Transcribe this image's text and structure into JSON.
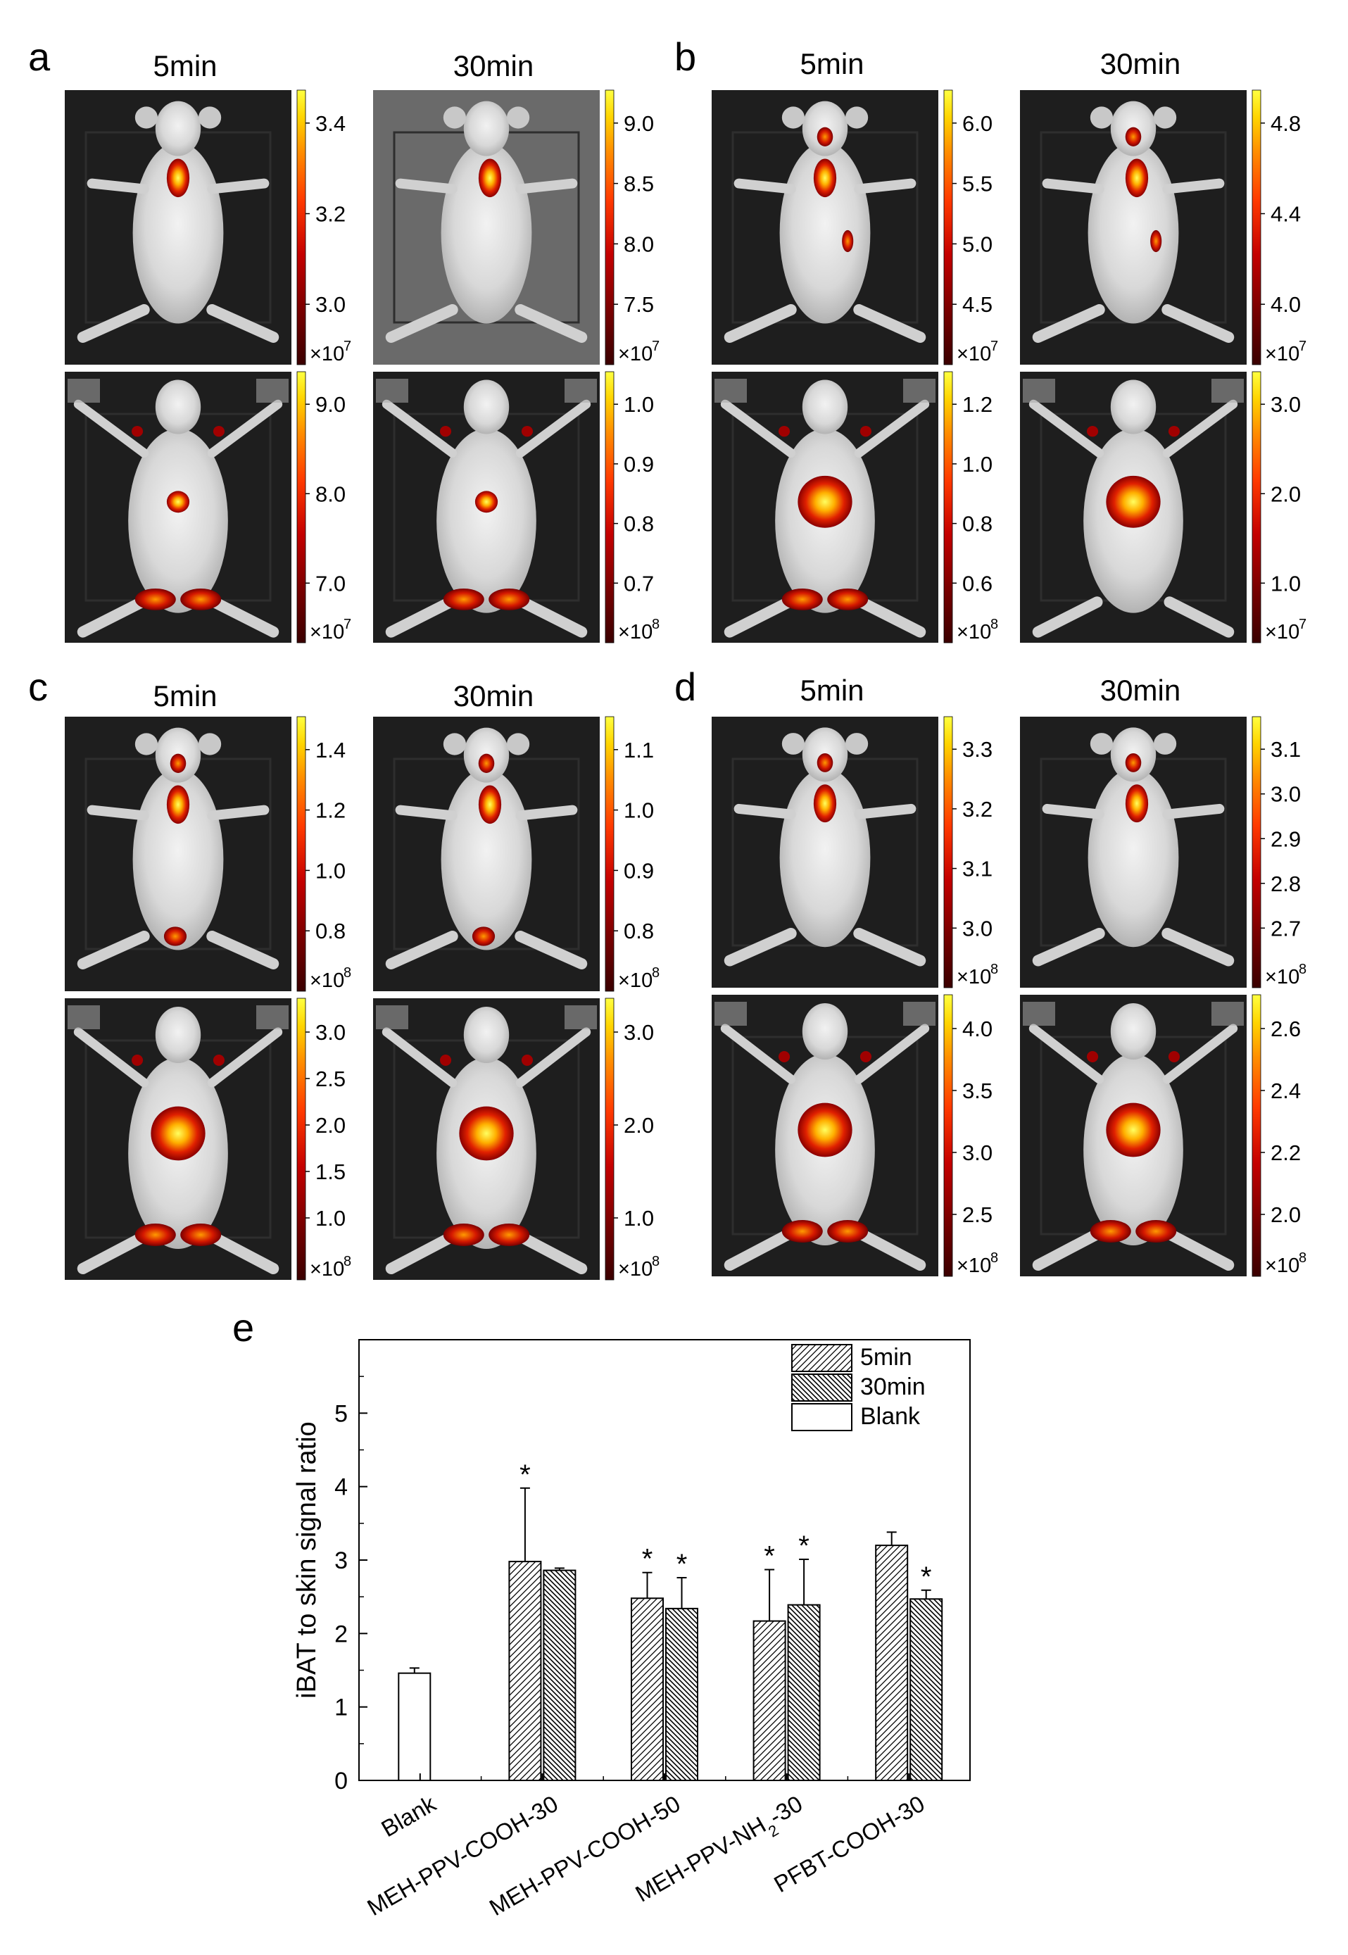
{
  "panel_letters": [
    "a",
    "b",
    "c",
    "d",
    "e"
  ],
  "time_labels": [
    "5min",
    "30min"
  ],
  "colormap": [
    "#3a0000",
    "#7a0000",
    "#c40000",
    "#ff3a00",
    "#ff9000",
    "#ffd400",
    "#ffff40"
  ],
  "image_panels": [
    {
      "letter": "a",
      "rows": [
        {
          "images": [
            {
              "time": "5min",
              "view": "dorsal",
              "background": "#1e1e1e",
              "colorbar": {
                "ticks": [
                  "3.4",
                  "3.2",
                  "3.0"
                ],
                "multiplier": "×10",
                "exponent": "7"
              }
            },
            {
              "time": "30min",
              "view": "dorsal",
              "background": "#6a6a6a",
              "colorbar": {
                "ticks": [
                  "9.0",
                  "8.5",
                  "8.0",
                  "7.5"
                ],
                "multiplier": "×10",
                "exponent": "7"
              }
            }
          ]
        },
        {
          "images": [
            {
              "time": "5min",
              "view": "ventral",
              "background": "#1e1e1e",
              "colorbar": {
                "ticks": [
                  "9.0",
                  "8.0",
                  "7.0"
                ],
                "multiplier": "×10",
                "exponent": "7"
              }
            },
            {
              "time": "30min",
              "view": "ventral",
              "background": "#1e1e1e",
              "colorbar": {
                "ticks": [
                  "1.0",
                  "0.9",
                  "0.8",
                  "0.7"
                ],
                "multiplier": "×10",
                "exponent": "8"
              }
            }
          ]
        }
      ]
    },
    {
      "letter": "b",
      "rows": [
        {
          "images": [
            {
              "time": "5min",
              "view": "dorsal",
              "background": "#1e1e1e",
              "colorbar": {
                "ticks": [
                  "6.0",
                  "5.5",
                  "5.0",
                  "4.5"
                ],
                "multiplier": "×10",
                "exponent": "7"
              }
            },
            {
              "time": "30min",
              "view": "dorsal",
              "background": "#1e1e1e",
              "colorbar": {
                "ticks": [
                  "4.8",
                  "4.4",
                  "4.0"
                ],
                "multiplier": "×10",
                "exponent": "7"
              }
            }
          ]
        },
        {
          "images": [
            {
              "time": "5min",
              "view": "ventral",
              "background": "#1e1e1e",
              "colorbar": {
                "ticks": [
                  "1.2",
                  "1.0",
                  "0.8",
                  "0.6"
                ],
                "multiplier": "×10",
                "exponent": "8"
              }
            },
            {
              "time": "30min",
              "view": "ventral",
              "background": "#1e1e1e",
              "colorbar": {
                "ticks": [
                  "3.0",
                  "2.0",
                  "1.0"
                ],
                "multiplier": "×10",
                "exponent": "7"
              }
            }
          ]
        }
      ]
    },
    {
      "letter": "c",
      "rows": [
        {
          "images": [
            {
              "time": "5min",
              "view": "dorsal",
              "background": "#1e1e1e",
              "colorbar": {
                "ticks": [
                  "1.4",
                  "1.2",
                  "1.0",
                  "0.8"
                ],
                "multiplier": "×10",
                "exponent": "8"
              }
            },
            {
              "time": "30min",
              "view": "dorsal",
              "background": "#1e1e1e",
              "colorbar": {
                "ticks": [
                  "1.1",
                  "1.0",
                  "0.9",
                  "0.8"
                ],
                "multiplier": "×10",
                "exponent": "8"
              }
            }
          ]
        },
        {
          "images": [
            {
              "time": "5min",
              "view": "ventral",
              "background": "#1e1e1e",
              "colorbar": {
                "ticks": [
                  "3.0",
                  "2.5",
                  "2.0",
                  "1.5",
                  "1.0"
                ],
                "multiplier": "×10",
                "exponent": "8"
              }
            },
            {
              "time": "30min",
              "view": "ventral",
              "background": "#1e1e1e",
              "colorbar": {
                "ticks": [
                  "3.0",
                  "2.0",
                  "1.0"
                ],
                "multiplier": "×10",
                "exponent": "8"
              }
            }
          ]
        }
      ]
    },
    {
      "letter": "d",
      "rows": [
        {
          "images": [
            {
              "time": "5min",
              "view": "dorsal",
              "background": "#1e1e1e",
              "colorbar": {
                "ticks": [
                  "3.3",
                  "3.2",
                  "3.1",
                  "3.0"
                ],
                "multiplier": "×10",
                "exponent": "8"
              }
            },
            {
              "time": "30min",
              "view": "dorsal",
              "background": "#1e1e1e",
              "colorbar": {
                "ticks": [
                  "3.1",
                  "3.0",
                  "2.9",
                  "2.8",
                  "2.7"
                ],
                "multiplier": "×10",
                "exponent": "8"
              }
            }
          ]
        },
        {
          "images": [
            {
              "time": "5min",
              "view": "ventral",
              "background": "#1e1e1e",
              "colorbar": {
                "ticks": [
                  "4.0",
                  "3.5",
                  "3.0",
                  "2.5"
                ],
                "multiplier": "×10",
                "exponent": "8"
              }
            },
            {
              "time": "30min",
              "view": "ventral",
              "background": "#1e1e1e",
              "colorbar": {
                "ticks": [
                  "2.6",
                  "2.4",
                  "2.2",
                  "2.0"
                ],
                "multiplier": "×10",
                "exponent": "8"
              }
            }
          ]
        }
      ]
    }
  ],
  "chart_data": {
    "type": "bar",
    "panel": "e",
    "title": "",
    "xlabel": "",
    "ylabel": "iBAT to skin signal ratio",
    "ylim": [
      0,
      6
    ],
    "yticks": [
      0,
      1,
      2,
      3,
      4,
      5
    ],
    "grid": false,
    "legend_position": "top-right",
    "categories": [
      {
        "name": "Blank",
        "sub": "",
        "rest": ""
      },
      {
        "name": "MEH-PPV-COOH-30",
        "sub": "",
        "rest": ""
      },
      {
        "name": "MEH-PPV-COOH-50",
        "sub": "",
        "rest": ""
      },
      {
        "name": "MEH-PPV-NH",
        "sub": "2",
        "rest": "-30"
      },
      {
        "name": "PFBT-COOH-30",
        "sub": "",
        "rest": ""
      }
    ],
    "series": [
      {
        "name": "5min",
        "pattern": "diag-right",
        "values": [
          null,
          2.98,
          2.48,
          2.17,
          3.2
        ],
        "errors": [
          null,
          1.0,
          0.35,
          0.7,
          0.18
        ],
        "significant": [
          false,
          true,
          true,
          true,
          false
        ]
      },
      {
        "name": "30min",
        "pattern": "diag-left",
        "values": [
          null,
          2.86,
          2.34,
          2.39,
          2.47
        ],
        "errors": [
          null,
          0.03,
          0.42,
          0.62,
          0.12
        ],
        "significant": [
          false,
          false,
          true,
          true,
          true
        ]
      },
      {
        "name": "Blank",
        "pattern": "none",
        "values": [
          1.46,
          null,
          null,
          null,
          null
        ],
        "errors": [
          0.07,
          null,
          null,
          null,
          null
        ],
        "significant": [
          false,
          false,
          false,
          false,
          false
        ]
      }
    ],
    "significance_marker": "*"
  }
}
